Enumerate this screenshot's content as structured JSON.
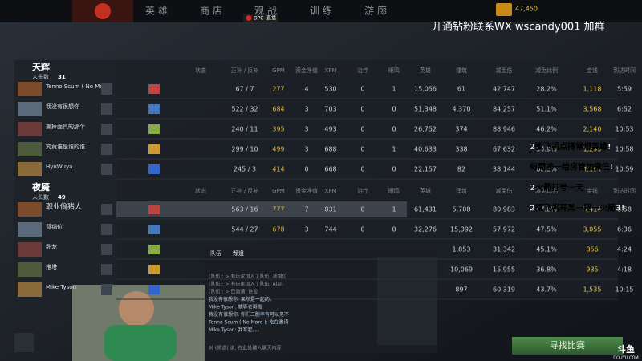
{
  "nav": {
    "tabs": [
      "英雄",
      "商店",
      "观战",
      "训练",
      "游廊"
    ],
    "gold": "47,450"
  },
  "badge": {
    "league": "DPC",
    "live": "直播"
  },
  "banner": "开通钻粉联系WX  wscandy001 加群",
  "radiant": {
    "name": "天辉",
    "kills_label": "人头数",
    "kills": "31",
    "players": [
      "Tenno Scum ( No More )",
      "我没有很想你",
      "撕掉面具的那个",
      "究竟谁是谁的谁",
      "HyuWuya"
    ]
  },
  "dire": {
    "name": "夜魇",
    "kills_label": "人头数",
    "kills": "49",
    "players": [
      "职业偷猪人",
      "背锅位",
      "卧龙",
      "推塔",
      "Mike Tyson"
    ]
  },
  "table": {
    "headers": [
      "状态",
      "正补 / 反补",
      "GPM",
      "资金净值",
      "XPM",
      "治疗",
      "眼鸣",
      "英雄",
      "建筑",
      "减免伤",
      "减免比例",
      "金钱",
      "到达时间"
    ],
    "radiant_rows": [
      [
        "67 / 7",
        "277",
        "4",
        "530",
        "0",
        "1",
        "15,056",
        "61",
        "42,747",
        "28.2%",
        "1,118",
        "5:59"
      ],
      [
        "522 / 32",
        "684",
        "3",
        "703",
        "0",
        "0",
        "51,348",
        "4,370",
        "84,257",
        "51.1%",
        "3,568",
        "6:52"
      ],
      [
        "240 / 11",
        "395",
        "3",
        "493",
        "0",
        "0",
        "26,752",
        "374",
        "88,946",
        "46.2%",
        "2,140",
        "10:53"
      ],
      [
        "299 / 10",
        "499",
        "3",
        "688",
        "0",
        "1",
        "40,633",
        "338",
        "67,632",
        "54.9%",
        "1,290",
        "10:58"
      ],
      [
        "245 / 3",
        "414",
        "0",
        "668",
        "0",
        "0",
        "22,157",
        "82",
        "38,144",
        "60.2%",
        "4,194",
        "10:59"
      ]
    ],
    "dire_rows": [
      [
        "563 / 16",
        "777",
        "7",
        "831",
        "0",
        "1",
        "61,431",
        "5,708",
        "80,983",
        "67.0%",
        "5,414",
        "8:58"
      ],
      [
        "544 / 27",
        "678",
        "3",
        "744",
        "0",
        "0",
        "32,276",
        "15,392",
        "57,972",
        "47.5%",
        "3,055",
        "6:36"
      ],
      [
        null,
        null,
        null,
        null,
        null,
        null,
        null,
        "1,853",
        "31,342",
        "45.1%",
        "856",
        "4:24"
      ],
      [
        null,
        null,
        null,
        null,
        null,
        null,
        null,
        "10,069",
        "15,955",
        "36.8%",
        "935",
        "4:18"
      ],
      [
        null,
        null,
        null,
        null,
        null,
        null,
        null,
        "897",
        "60,319",
        "43.7%",
        "1,535",
        "10:15"
      ]
    ]
  },
  "overlay": [
    "2驱飞机点播常规英雄!",
    "每周榜一给房管加微信!",
    "2火箭打号一天",
    "2驱飞机开黑一把一火箭3!"
  ],
  "chat": {
    "tab_team": "队伍",
    "tab_channel": "频道",
    "lines": [
      "(队伍): > 有玩家加入了队伍: 背锅位",
      "(队伍): > 有玩家加入了队伍: Alan",
      "(队伍): > 已邀请: 卧龙",
      "我没有很想你: 果然是一起的。",
      "Mike Tyson: 就等老哥啦",
      "我没有很想你: 你们三胞率有可以见不",
      "Tenno Scum ( No More ): 吃在邀请",
      "Mike Tyson: 我写起。。。"
    ],
    "input_hint": "对 (频道) 说: 在此处输入聊天内容"
  },
  "find_match": "寻找比赛",
  "watermark": {
    "brand": "斗鱼",
    "site": "DOUYU.COM"
  }
}
